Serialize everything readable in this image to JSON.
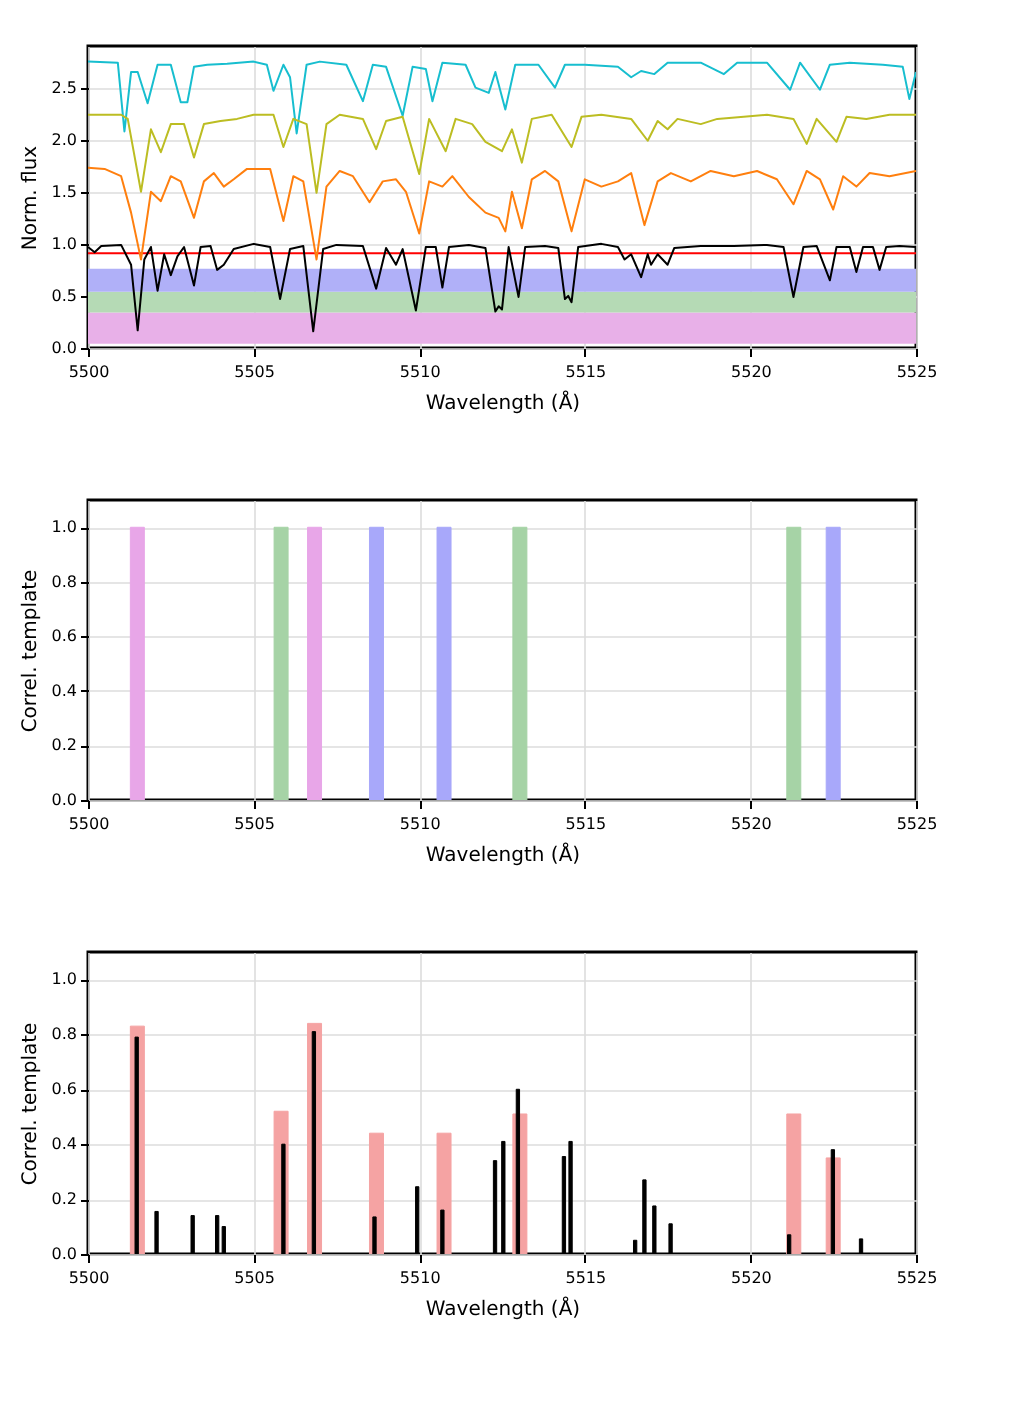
{
  "chart_data": [
    {
      "type": "line",
      "xlabel": "Wavelength (Å)",
      "ylabel": "Norm. flux",
      "xlim": [
        5500,
        5525
      ],
      "xticks": [
        5500,
        5505,
        5510,
        5515,
        5520,
        5525
      ],
      "ylim": [
        0,
        2.9
      ],
      "yticks": [
        {
          "value": 0,
          "label": "0.0"
        },
        0.5,
        {
          "value": 1,
          "label": "1.0"
        },
        1.5,
        {
          "value": 2,
          "label": "2.0"
        },
        2.5
      ],
      "grid": true,
      "bands": [
        {
          "axis": "y",
          "from": 0.04,
          "to": 0.34,
          "color": "#e8b0e8"
        },
        {
          "axis": "y",
          "from": 0.34,
          "to": 0.54,
          "color": "#b5dab5"
        },
        {
          "axis": "y",
          "from": 0.54,
          "to": 0.76,
          "color": "#b0b0f8"
        }
      ],
      "ref_lines": [
        {
          "axis": "y",
          "value": 0.91,
          "color": "#ff0000"
        }
      ],
      "series": [
        {
          "color": "#17becf",
          "x": [
            5500,
            5500.9,
            5501.1,
            5501.3,
            5501.5,
            5501.8,
            5502.1,
            5502.5,
            5502.8,
            5503,
            5503.2,
            5503.6,
            5504.2,
            5505,
            5505.4,
            5505.6,
            5505.9,
            5506.1,
            5506.3,
            5506.6,
            5507,
            5507.8,
            5508.3,
            5508.6,
            5509,
            5509.5,
            5509.8,
            5510.2,
            5510.4,
            5510.7,
            5511.4,
            5511.7,
            5512.1,
            5512.3,
            5512.6,
            5512.9,
            5513.6,
            5514.1,
            5514.4,
            5515,
            5516,
            5516.4,
            5516.7,
            5517.1,
            5517.5,
            5518.5,
            5519.2,
            5519.6,
            5520.5,
            5521.2,
            5521.5,
            5522.1,
            5522.4,
            5523,
            5524,
            5524.6,
            5524.8,
            5525
          ],
          "values": [
            2.75,
            2.74,
            2.08,
            2.65,
            2.65,
            2.35,
            2.72,
            2.72,
            2.36,
            2.36,
            2.7,
            2.72,
            2.73,
            2.75,
            2.72,
            2.47,
            2.72,
            2.6,
            2.06,
            2.72,
            2.75,
            2.72,
            2.37,
            2.72,
            2.7,
            2.23,
            2.7,
            2.68,
            2.37,
            2.74,
            2.72,
            2.5,
            2.45,
            2.65,
            2.29,
            2.72,
            2.72,
            2.5,
            2.72,
            2.72,
            2.7,
            2.6,
            2.66,
            2.63,
            2.74,
            2.74,
            2.63,
            2.74,
            2.74,
            2.48,
            2.74,
            2.48,
            2.72,
            2.74,
            2.72,
            2.7,
            2.39,
            2.65
          ]
        },
        {
          "color": "#bcbd22",
          "x": [
            5500,
            5501,
            5501.2,
            5501.6,
            5501.9,
            5502.2,
            5502.5,
            5502.9,
            5503.2,
            5503.5,
            5504,
            5504.5,
            5505,
            5505.6,
            5505.9,
            5506.2,
            5506.6,
            5506.9,
            5507.2,
            5507.6,
            5508.3,
            5508.7,
            5509,
            5509.5,
            5510,
            5510.3,
            5510.8,
            5511.1,
            5511.6,
            5512,
            5512.5,
            5512.8,
            5513.1,
            5513.4,
            5514,
            5514.6,
            5514.9,
            5515.5,
            5516.4,
            5516.9,
            5517.2,
            5517.5,
            5517.8,
            5518.5,
            5519,
            5519.8,
            5520.5,
            5521.3,
            5521.7,
            5522,
            5522.6,
            5522.9,
            5523.5,
            5524.2,
            5525
          ],
          "values": [
            2.24,
            2.24,
            2.2,
            1.5,
            2.1,
            1.88,
            2.15,
            2.15,
            1.83,
            2.15,
            2.18,
            2.2,
            2.24,
            2.24,
            1.93,
            2.2,
            2.15,
            1.49,
            2.15,
            2.24,
            2.2,
            1.91,
            2.18,
            2.22,
            1.67,
            2.2,
            1.89,
            2.2,
            2.15,
            1.98,
            1.89,
            2.1,
            1.78,
            2.2,
            2.24,
            1.93,
            2.22,
            2.24,
            2.2,
            1.99,
            2.18,
            2.1,
            2.2,
            2.15,
            2.2,
            2.22,
            2.24,
            2.2,
            1.96,
            2.2,
            1.98,
            2.22,
            2.2,
            2.24,
            2.24
          ]
        },
        {
          "color": "#ff7f0e",
          "x": [
            5500,
            5500.5,
            5501,
            5501.3,
            5501.6,
            5501.9,
            5502.2,
            5502.5,
            5502.8,
            5503.2,
            5503.5,
            5503.8,
            5504.1,
            5504.4,
            5504.8,
            5505.5,
            5505.9,
            5506.2,
            5506.5,
            5506.9,
            5507.2,
            5507.6,
            5508,
            5508.5,
            5508.9,
            5509.3,
            5509.6,
            5510,
            5510.3,
            5510.7,
            5511,
            5511.5,
            5512,
            5512.4,
            5512.6,
            5512.8,
            5513.1,
            5513.4,
            5513.8,
            5514.2,
            5514.6,
            5515,
            5515.5,
            5516,
            5516.4,
            5516.8,
            5517.2,
            5517.6,
            5518.2,
            5518.8,
            5519.5,
            5520.2,
            5520.8,
            5521.3,
            5521.7,
            5522.1,
            5522.5,
            5522.8,
            5523.2,
            5523.6,
            5524.2,
            5525
          ],
          "values": [
            1.73,
            1.72,
            1.65,
            1.3,
            0.85,
            1.5,
            1.41,
            1.65,
            1.6,
            1.25,
            1.6,
            1.68,
            1.55,
            1.62,
            1.72,
            1.72,
            1.22,
            1.65,
            1.6,
            0.85,
            1.55,
            1.7,
            1.65,
            1.4,
            1.6,
            1.62,
            1.5,
            1.1,
            1.6,
            1.55,
            1.65,
            1.45,
            1.3,
            1.25,
            1.12,
            1.5,
            1.15,
            1.62,
            1.7,
            1.6,
            1.12,
            1.62,
            1.55,
            1.6,
            1.68,
            1.18,
            1.6,
            1.68,
            1.6,
            1.7,
            1.65,
            1.7,
            1.62,
            1.38,
            1.7,
            1.62,
            1.33,
            1.65,
            1.55,
            1.68,
            1.65,
            1.7
          ]
        },
        {
          "color": "#000000",
          "x": [
            5500,
            5500.2,
            5500.4,
            5501,
            5501.3,
            5501.5,
            5501.7,
            5501.9,
            5502.1,
            5502.3,
            5502.5,
            5502.7,
            5502.9,
            5503.2,
            5503.4,
            5503.7,
            5503.9,
            5504.1,
            5504.4,
            5505,
            5505.5,
            5505.8,
            5506.1,
            5506.5,
            5506.8,
            5507.1,
            5507.5,
            5508.3,
            5508.7,
            5509,
            5509.3,
            5509.5,
            5509.9,
            5510.2,
            5510.5,
            5510.7,
            5510.9,
            5511.5,
            5512,
            5512.3,
            5512.4,
            5512.5,
            5512.7,
            5513,
            5513.2,
            5513.8,
            5514.2,
            5514.4,
            5514.5,
            5514.6,
            5514.8,
            5515.5,
            5516,
            5516.2,
            5516.4,
            5516.7,
            5516.9,
            5517,
            5517.2,
            5517.5,
            5517.7,
            5518.5,
            5519.5,
            5520.5,
            5521,
            5521.3,
            5521.6,
            5522,
            5522.4,
            5522.6,
            5523,
            5523.2,
            5523.4,
            5523.7,
            5523.9,
            5524.1,
            5524.5,
            5525
          ],
          "values": [
            0.97,
            0.92,
            0.98,
            0.99,
            0.8,
            0.17,
            0.85,
            0.97,
            0.55,
            0.9,
            0.7,
            0.88,
            0.97,
            0.6,
            0.97,
            0.98,
            0.75,
            0.8,
            0.95,
            1,
            0.97,
            0.47,
            0.95,
            0.98,
            0.16,
            0.95,
            0.99,
            0.98,
            0.57,
            0.96,
            0.8,
            0.95,
            0.36,
            0.97,
            0.97,
            0.58,
            0.97,
            0.99,
            0.96,
            0.35,
            0.4,
            0.37,
            0.97,
            0.49,
            0.97,
            0.98,
            0.96,
            0.47,
            0.5,
            0.44,
            0.97,
            1,
            0.97,
            0.85,
            0.9,
            0.68,
            0.9,
            0.8,
            0.9,
            0.8,
            0.96,
            0.98,
            0.98,
            0.99,
            0.97,
            0.49,
            0.97,
            0.98,
            0.65,
            0.97,
            0.97,
            0.73,
            0.97,
            0.97,
            0.75,
            0.97,
            0.98,
            0.97
          ]
        }
      ]
    },
    {
      "type": "bar",
      "xlabel": "Wavelength (Å)",
      "ylabel": "Correl. template",
      "xlim": [
        5500,
        5525
      ],
      "xticks": [
        5500,
        5505,
        5510,
        5515,
        5520,
        5525
      ],
      "ylim": [
        0,
        1.1
      ],
      "yticks": [
        {
          "value": 0,
          "label": "0.0"
        },
        0.2,
        0.4,
        0.6,
        0.8,
        {
          "value": 1,
          "label": "1.0"
        }
      ],
      "grid": true,
      "series": [
        {
          "color": "#e8a6e8",
          "x": [
            5501.49,
            5506.84
          ],
          "values": [
            1,
            1
          ]
        },
        {
          "color": "#a6d3a6",
          "x": [
            5505.83,
            5513.04,
            5521.31
          ],
          "values": [
            1,
            1,
            1
          ]
        },
        {
          "color": "#a8a8fa",
          "x": [
            5508.71,
            5510.75,
            5522.5
          ],
          "values": [
            1,
            1,
            1
          ]
        }
      ]
    },
    {
      "type": "bar",
      "xlabel": "Wavelength (Å)",
      "ylabel": "Correl. template",
      "xlim": [
        5500,
        5525
      ],
      "xticks": [
        5500,
        5505,
        5510,
        5515,
        5520,
        5525
      ],
      "ylim": [
        0,
        1.1
      ],
      "yticks": [
        {
          "value": 0,
          "label": "0.0"
        },
        0.2,
        0.4,
        0.6,
        0.8,
        {
          "value": 1,
          "label": "1.0"
        }
      ],
      "grid": true,
      "series": [
        {
          "color": "#f5a3a3",
          "x": [
            5501.49,
            5505.83,
            5506.84,
            5508.71,
            5510.75,
            5513.04,
            5521.31,
            5522.5
          ],
          "values": [
            0.83,
            0.52,
            0.84,
            0.44,
            0.44,
            0.51,
            0.51,
            0.35
          ]
        },
        {
          "color": "#000000",
          "x": [
            5501.47,
            5502.07,
            5503.16,
            5503.9,
            5504.1,
            5505.9,
            5506.82,
            5508.65,
            5509.94,
            5510.7,
            5512.29,
            5512.54,
            5512.98,
            5514.37,
            5514.57,
            5516.52,
            5516.8,
            5517.1,
            5517.59,
            5521.17,
            5522.49,
            5523.34
          ],
          "values": [
            0.79,
            0.155,
            0.14,
            0.14,
            0.1,
            0.4,
            0.81,
            0.135,
            0.245,
            0.16,
            0.34,
            0.41,
            0.6,
            0.355,
            0.41,
            0.05,
            0.27,
            0.175,
            0.11,
            0.07,
            0.38,
            0.055
          ]
        }
      ]
    }
  ]
}
